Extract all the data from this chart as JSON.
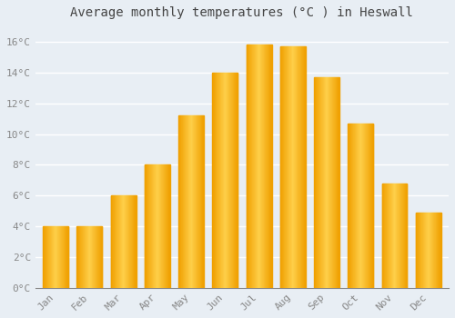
{
  "title": "Average monthly temperatures (°C ) in Heswall",
  "months": [
    "Jan",
    "Feb",
    "Mar",
    "Apr",
    "May",
    "Jun",
    "Jul",
    "Aug",
    "Sep",
    "Oct",
    "Nov",
    "Dec"
  ],
  "values": [
    4.0,
    4.0,
    6.0,
    8.0,
    11.2,
    14.0,
    15.8,
    15.7,
    13.7,
    10.7,
    6.8,
    4.9
  ],
  "bar_color_center": "#FFD04A",
  "bar_color_edge": "#F0A000",
  "background_color": "#E8EEF4",
  "plot_bg_color": "#E8EEF4",
  "grid_color": "#FFFFFF",
  "text_color": "#888888",
  "axis_color": "#888888",
  "ylim": [
    0,
    17
  ],
  "yticks": [
    0,
    2,
    4,
    6,
    8,
    10,
    12,
    14,
    16
  ],
  "title_fontsize": 10,
  "tick_fontsize": 8,
  "bar_width": 0.75
}
